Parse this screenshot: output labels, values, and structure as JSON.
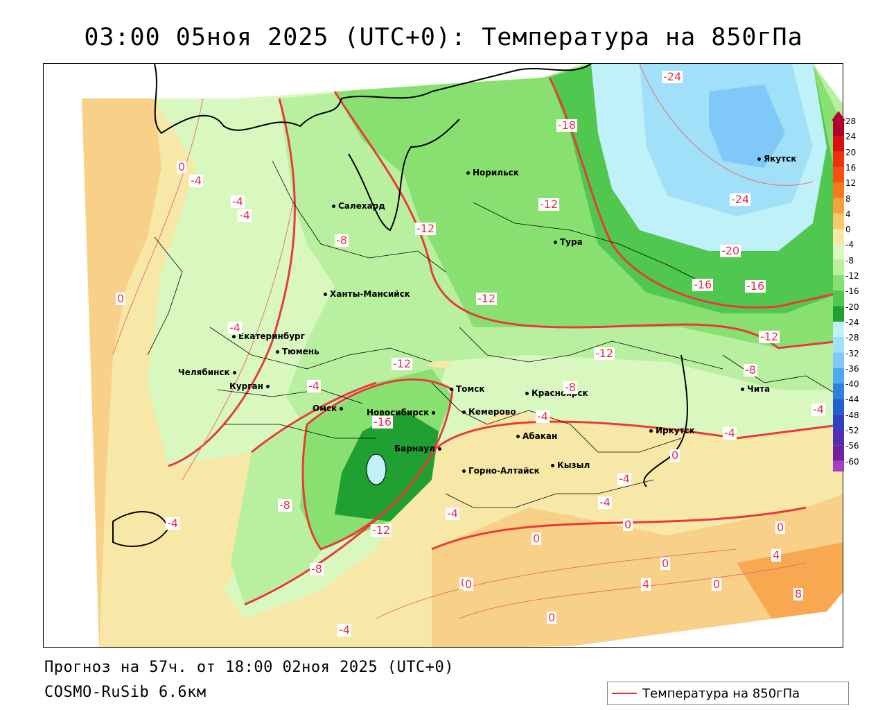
{
  "title": "03:00 05ноя 2025 (UTC+0): Температура на 850гПа",
  "footer": {
    "forecast": "Прогноз на 57ч. от 18:00 02ноя 2025 (UTC+0)",
    "model": "COSMO-RuSib 6.6км"
  },
  "legend": {
    "label": "Температура на 850гПа",
    "line_color": "#e03030"
  },
  "colorbar": {
    "ticks": [
      "28",
      "24",
      "20",
      "16",
      "12",
      "8",
      "4",
      "0",
      "-4",
      "-8",
      "-12",
      "-16",
      "-20",
      "-24",
      "-28",
      "-32",
      "-36",
      "-40",
      "-44",
      "-48",
      "-52",
      "-56",
      "-60"
    ],
    "colors": [
      "#b00030",
      "#d81010",
      "#f03010",
      "#f85010",
      "#f87820",
      "#f8a040",
      "#f8c870",
      "#f8e8a8",
      "#d8f8c0",
      "#b8f0a0",
      "#88e070",
      "#50c850",
      "#20a030",
      "#c0f0f8",
      "#a0e0f8",
      "#80c8f8",
      "#50a8f0",
      "#3080e0",
      "#2060d0",
      "#3040c0",
      "#5030b0",
      "#7020a0",
      "#a040c0"
    ]
  },
  "cities": [
    {
      "name": "Якутск"
    },
    {
      "name": "Норильск"
    },
    {
      "name": "Салехард"
    },
    {
      "name": "Тура"
    },
    {
      "name": "Ханты-Мансийск"
    },
    {
      "name": "Екатеринбург"
    },
    {
      "name": "Тюмень"
    },
    {
      "name": "Челябинск"
    },
    {
      "name": "Курган"
    },
    {
      "name": "Омск"
    },
    {
      "name": "Новосибирск"
    },
    {
      "name": "Томск"
    },
    {
      "name": "Кемерово"
    },
    {
      "name": "Красноярск"
    },
    {
      "name": "Барнаул"
    },
    {
      "name": "Абакан"
    },
    {
      "name": "Горно-Алтайск"
    },
    {
      "name": "Кызыл"
    },
    {
      "name": "Иркутск"
    },
    {
      "name": "Чита"
    }
  ],
  "contour_labels": [
    "-24",
    "-24",
    "-18",
    "-12",
    "-12",
    "-20",
    "-16",
    "-16",
    "-12",
    "-12",
    "-12",
    "-8",
    "-12",
    "-8",
    "-16",
    "-12",
    "-8",
    "-8",
    "-4",
    "-4",
    "-4",
    "0",
    "-4",
    "-4",
    "-4",
    "0",
    "0",
    "0",
    "4",
    "4",
    "8",
    "0",
    "0",
    "-4",
    "0",
    "-4",
    "-4",
    "-4",
    "-4",
    "-8",
    "0",
    "0",
    "-4",
    "-4",
    "0",
    "0"
  ]
}
